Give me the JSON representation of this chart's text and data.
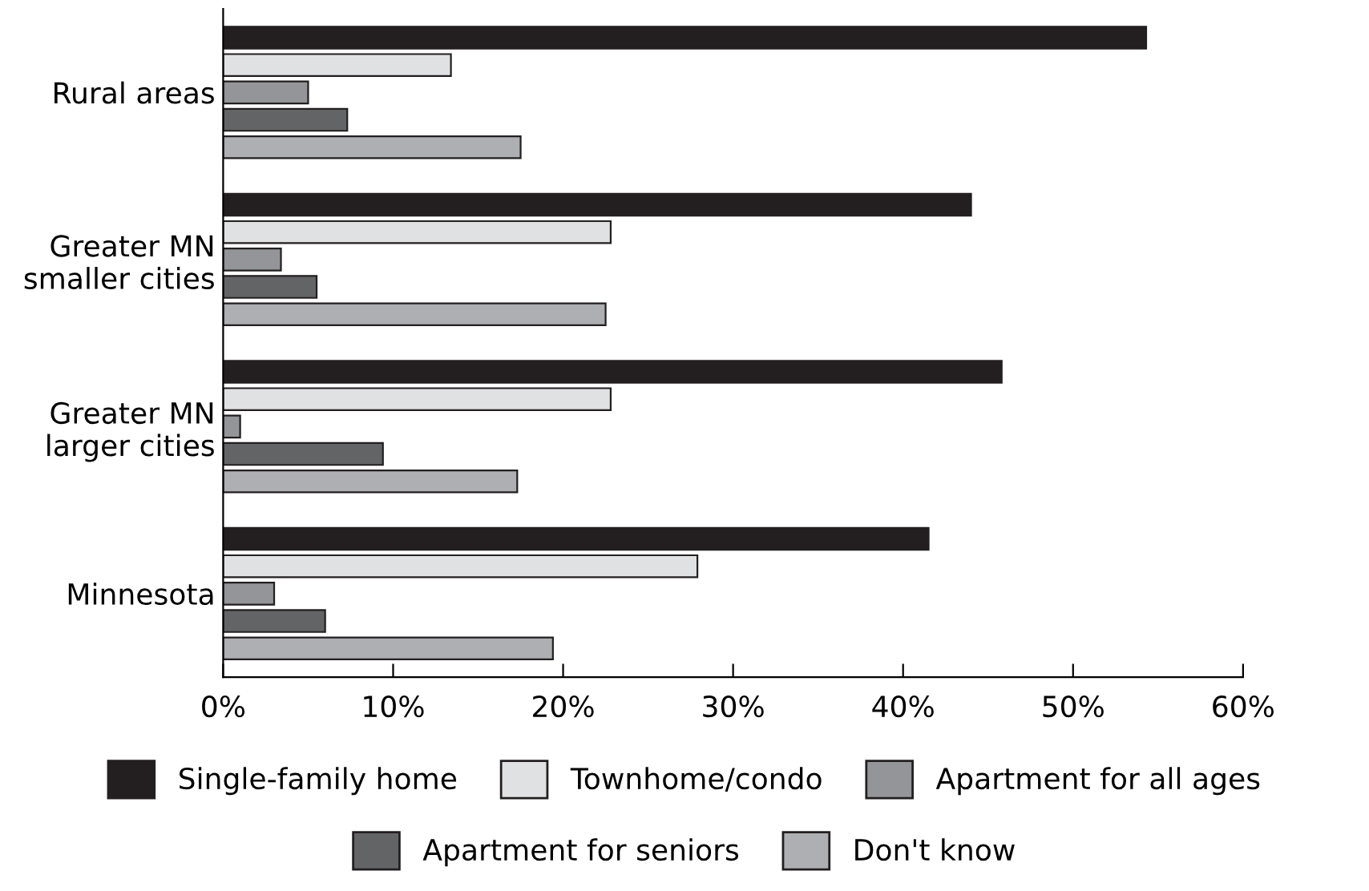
{
  "chart_data": {
    "type": "bar",
    "orientation": "horizontal",
    "categories": [
      "Rural areas",
      "Greater MN\nsmaller cities",
      "Greater MN\nlarger cities",
      "Minnesota"
    ],
    "series": [
      {
        "name": "Single-family home",
        "color": "#231f20",
        "values": [
          54.3,
          44.0,
          45.8,
          41.5
        ]
      },
      {
        "name": "Townhome/condo",
        "color": "#e0e1e3",
        "values": [
          13.4,
          22.8,
          22.8,
          27.9
        ]
      },
      {
        "name": "Apartment for all ages",
        "color": "#939598",
        "values": [
          5.0,
          3.4,
          1.0,
          3.0
        ]
      },
      {
        "name": "Apartment for seniors",
        "color": "#636466",
        "values": [
          7.3,
          5.5,
          9.4,
          6.0
        ]
      },
      {
        "name": "Don't know",
        "color": "#adafb2",
        "values": [
          17.5,
          22.5,
          17.3,
          19.4
        ]
      }
    ],
    "xlim": [
      0,
      60
    ],
    "xticks": [
      {
        "value": 0,
        "label": "0%"
      },
      {
        "value": 10,
        "label": "10%"
      },
      {
        "value": 20,
        "label": "20%"
      },
      {
        "value": 30,
        "label": "30%"
      },
      {
        "value": 40,
        "label": "40%"
      },
      {
        "value": 50,
        "label": "50%"
      },
      {
        "value": 60,
        "label": "60%"
      }
    ],
    "grid": false,
    "legend": "bottom"
  }
}
